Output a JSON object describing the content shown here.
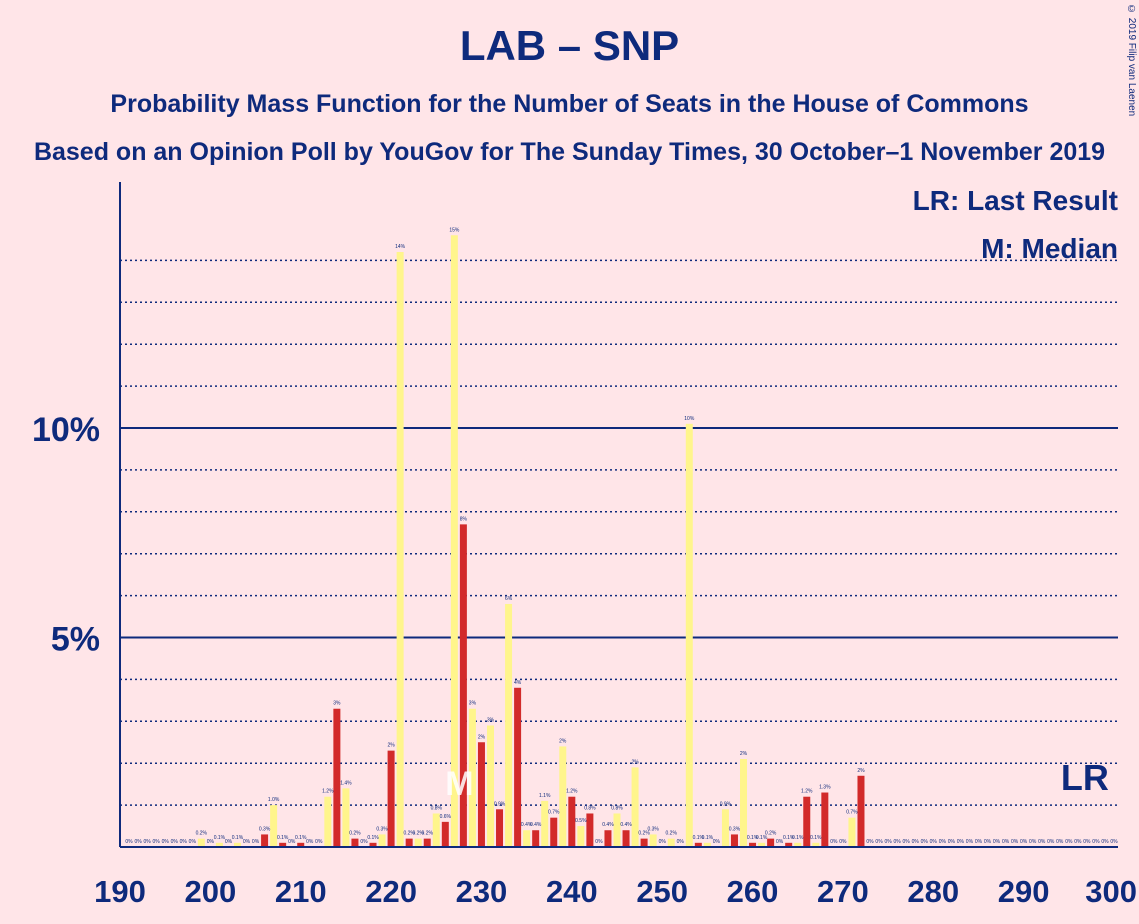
{
  "title": "LAB – SNP",
  "subtitle": "Probability Mass Function for the Number of Seats in the House of Commons",
  "subtitle2": "Based on an Opinion Poll by YouGov for The Sunday Times, 30 October–1 November 2019",
  "copyright": "© 2019 Filip van Laenen",
  "colors": {
    "background": "#ffe5e8",
    "text": "#0e2a7c",
    "lab": "#e8a7b0",
    "lab_bar": "#d22a2a",
    "snp_bar": "#fff58c",
    "grid": "#0e2a7c"
  },
  "chart_data": {
    "type": "bar",
    "xlabel": "",
    "ylabel": "",
    "xlim": [
      190,
      300
    ],
    "ylim": [
      0,
      16
    ],
    "x_ticks": [
      190,
      200,
      210,
      220,
      230,
      240,
      250,
      260,
      270,
      280,
      290,
      300
    ],
    "y_ticks": [
      {
        "value": 5,
        "label": "5%"
      },
      {
        "value": 10,
        "label": "10%"
      }
    ],
    "legend": [
      {
        "text": "LR: Last Result"
      },
      {
        "text": "M: Median"
      }
    ],
    "markers": [
      {
        "label": "M",
        "x": 228,
        "series": "SNP"
      },
      {
        "label": "LR",
        "x": 297
      }
    ],
    "series": [
      {
        "name": "SNP",
        "color": "#fff58c",
        "points": [
          [
            191,
            0,
            "0%"
          ],
          [
            193,
            0,
            "0%"
          ],
          [
            195,
            0,
            "0%"
          ],
          [
            197,
            0,
            "0%"
          ],
          [
            199,
            0.2,
            "0.2%"
          ],
          [
            201,
            0.1,
            "0.1%"
          ],
          [
            203,
            0.1,
            "0.1%"
          ],
          [
            205,
            0,
            "0%"
          ],
          [
            207,
            1.0,
            "1.0%"
          ],
          [
            209,
            0,
            "0%"
          ],
          [
            211,
            0,
            "0%"
          ],
          [
            213,
            1.2,
            "1.2%"
          ],
          [
            215,
            1.4,
            "1.4%"
          ],
          [
            217,
            0,
            "0%"
          ],
          [
            219,
            0.3,
            "0.3%"
          ],
          [
            221,
            14.2,
            "14%"
          ],
          [
            223,
            0.2,
            "0.2%"
          ],
          [
            225,
            0.8,
            "0.8%"
          ],
          [
            227,
            14.6,
            "15%"
          ],
          [
            229,
            3.3,
            "3%"
          ],
          [
            231,
            2.9,
            "3%"
          ],
          [
            233,
            5.8,
            "6%"
          ],
          [
            235,
            0.4,
            "0.4%"
          ],
          [
            237,
            1.1,
            "1.1%"
          ],
          [
            239,
            2.4,
            "2%"
          ],
          [
            241,
            0.5,
            "0.5%"
          ],
          [
            243,
            0,
            "0%"
          ],
          [
            245,
            0.8,
            "0.8%"
          ],
          [
            247,
            1.9,
            "2%"
          ],
          [
            249,
            0.3,
            "0.3%"
          ],
          [
            251,
            0.2,
            "0.2%"
          ],
          [
            253,
            10.1,
            "10%"
          ],
          [
            255,
            0.1,
            "0.1%"
          ],
          [
            257,
            0.9,
            "0.9%"
          ],
          [
            259,
            2.1,
            "2%"
          ],
          [
            261,
            0.1,
            "0.1%"
          ],
          [
            263,
            0,
            "0%"
          ],
          [
            265,
            0.1,
            "0.1%"
          ],
          [
            267,
            0.1,
            "0.1%"
          ],
          [
            269,
            0,
            "0%"
          ],
          [
            271,
            0.7,
            "0.7%"
          ],
          [
            273,
            0,
            "0%"
          ],
          [
            275,
            0,
            "0%"
          ],
          [
            277,
            0,
            "0%"
          ],
          [
            279,
            0,
            "0%"
          ],
          [
            281,
            0,
            "0%"
          ],
          [
            283,
            0,
            "0%"
          ],
          [
            285,
            0,
            "0%"
          ],
          [
            287,
            0,
            "0%"
          ],
          [
            289,
            0,
            "0%"
          ],
          [
            291,
            0,
            "0%"
          ],
          [
            293,
            0,
            "0%"
          ],
          [
            295,
            0,
            "0%"
          ],
          [
            297,
            0,
            "0%"
          ],
          [
            299,
            0,
            "0%"
          ]
        ]
      },
      {
        "name": "LAB",
        "color": "#d22a2a",
        "points": [
          [
            192,
            0,
            "0%"
          ],
          [
            194,
            0,
            "0%"
          ],
          [
            196,
            0,
            "0%"
          ],
          [
            198,
            0,
            "0%"
          ],
          [
            200,
            0,
            "0%"
          ],
          [
            202,
            0,
            "0%"
          ],
          [
            204,
            0,
            "0%"
          ],
          [
            206,
            0.3,
            "0.3%"
          ],
          [
            208,
            0.1,
            "0.1%"
          ],
          [
            210,
            0.1,
            "0.1%"
          ],
          [
            212,
            0,
            "0%"
          ],
          [
            214,
            3.3,
            "3%"
          ],
          [
            216,
            0.2,
            "0.2%"
          ],
          [
            218,
            0.1,
            "0.1%"
          ],
          [
            220,
            2.3,
            "2%"
          ],
          [
            222,
            0.2,
            "0.2%"
          ],
          [
            224,
            0.2,
            "0.2%"
          ],
          [
            226,
            0.6,
            "0.6%"
          ],
          [
            228,
            7.7,
            "8%"
          ],
          [
            230,
            2.5,
            "2%"
          ],
          [
            232,
            0.9,
            "0.9%"
          ],
          [
            234,
            3.8,
            "4%"
          ],
          [
            236,
            0.4,
            "0.4%"
          ],
          [
            238,
            0.7,
            "0.7%"
          ],
          [
            240,
            1.2,
            "1.2%"
          ],
          [
            242,
            0.8,
            "0.8%"
          ],
          [
            244,
            0.4,
            "0.4%"
          ],
          [
            246,
            0.4,
            "0.4%"
          ],
          [
            248,
            0.2,
            "0.2%"
          ],
          [
            250,
            0,
            "0%"
          ],
          [
            252,
            0,
            "0%"
          ],
          [
            254,
            0.1,
            "0.1%"
          ],
          [
            256,
            0,
            "0%"
          ],
          [
            258,
            0.3,
            "0.3%"
          ],
          [
            260,
            0.1,
            "0.1%"
          ],
          [
            262,
            0.2,
            "0.2%"
          ],
          [
            264,
            0.1,
            "0.1%"
          ],
          [
            266,
            1.2,
            "1.2%"
          ],
          [
            268,
            1.3,
            "1.3%"
          ],
          [
            270,
            0,
            "0%"
          ],
          [
            272,
            1.7,
            "2%"
          ],
          [
            274,
            0,
            "0%"
          ],
          [
            276,
            0,
            "0%"
          ],
          [
            278,
            0,
            "0%"
          ],
          [
            280,
            0,
            "0%"
          ],
          [
            282,
            0,
            "0%"
          ],
          [
            284,
            0,
            "0%"
          ],
          [
            286,
            0,
            "0%"
          ],
          [
            288,
            0,
            "0%"
          ],
          [
            290,
            0,
            "0%"
          ],
          [
            292,
            0,
            "0%"
          ],
          [
            294,
            0,
            "0%"
          ],
          [
            296,
            0,
            "0%"
          ],
          [
            298,
            0,
            "0%"
          ],
          [
            300,
            0,
            "0%"
          ]
        ]
      }
    ]
  }
}
